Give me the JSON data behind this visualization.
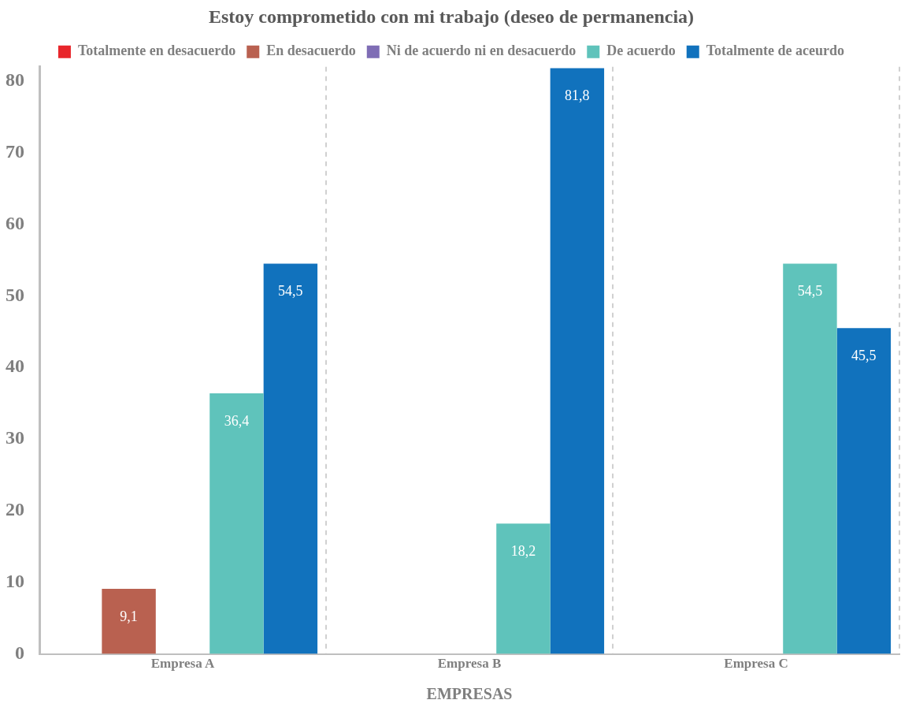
{
  "chart_data": {
    "type": "bar",
    "title": "Estoy comprometido con mi trabajo (deseo de permanencia)",
    "xlabel": "EMPRESAS",
    "categories": [
      "Empresa A",
      "Empresa B",
      "Empresa C"
    ],
    "series": [
      {
        "name": "Totalmente en desacuerdo",
        "color": "#e8262b",
        "values": [
          null,
          null,
          null
        ],
        "value_labels": [
          null,
          null,
          null
        ]
      },
      {
        "name": "En desacuerdo",
        "color": "#b96150",
        "values": [
          9.1,
          null,
          null
        ],
        "value_labels": [
          "9,1",
          null,
          null
        ]
      },
      {
        "name": "Ni de acuerdo ni en desacuerdo",
        "color": "#7f6db5",
        "values": [
          null,
          null,
          null
        ],
        "value_labels": [
          null,
          null,
          null
        ]
      },
      {
        "name": "De acuerdo",
        "color": "#5fc3bb",
        "values": [
          36.4,
          18.2,
          54.5
        ],
        "value_labels": [
          "36,4",
          "18,2",
          "54,5"
        ]
      },
      {
        "name": "Totalmente de aceurdo",
        "color": "#1172bd",
        "values": [
          54.5,
          81.8,
          45.5
        ],
        "value_labels": [
          "54,5",
          "81,8",
          "45,5"
        ]
      }
    ],
    "ylim": [
      0,
      82
    ],
    "yticks": [
      0,
      10,
      20,
      30,
      40,
      50,
      60,
      70,
      80
    ],
    "grid": "x",
    "legend": "top"
  }
}
